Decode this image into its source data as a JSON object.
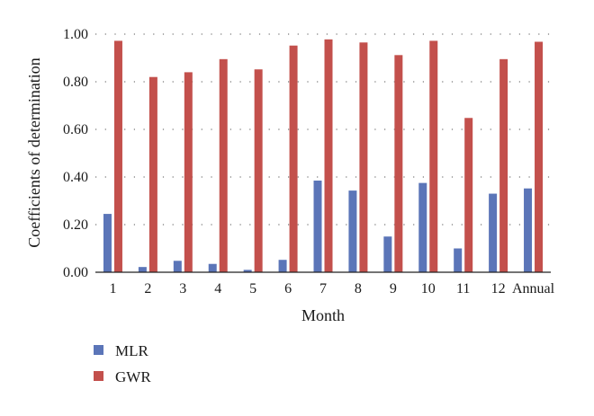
{
  "chart_data": {
    "type": "bar",
    "categories": [
      "1",
      "2",
      "3",
      "4",
      "5",
      "6",
      "7",
      "8",
      "9",
      "10",
      "11",
      "12",
      "Annual"
    ],
    "series": [
      {
        "name": "MLR",
        "color": "#5b75b8",
        "values": [
          0.245,
          0.022,
          0.048,
          0.035,
          0.01,
          0.052,
          0.385,
          0.343,
          0.15,
          0.375,
          0.1,
          0.33,
          0.352
        ]
      },
      {
        "name": "GWR",
        "color": "#c3504c",
        "values": [
          0.972,
          0.82,
          0.84,
          0.895,
          0.852,
          0.952,
          0.978,
          0.965,
          0.912,
          0.972,
          0.648,
          0.895,
          0.968
        ]
      }
    ],
    "xlabel": "Month",
    "ylabel": "Coefficients of determination",
    "ylim": [
      0,
      1.0
    ],
    "yticks": [
      "0.00",
      "0.20",
      "0.40",
      "0.60",
      "0.80",
      "1.00"
    ],
    "ytick_values": [
      0,
      0.2,
      0.4,
      0.6,
      0.8,
      1.0
    ],
    "grid": "horizontal-dotted",
    "legend_position": "bottom-left"
  }
}
